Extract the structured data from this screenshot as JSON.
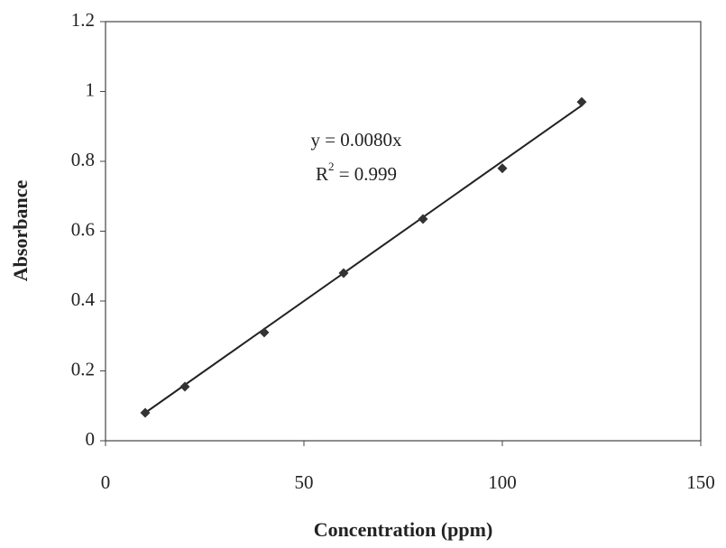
{
  "chart_data": {
    "type": "scatter",
    "x_label": "Concentration (ppm)",
    "y_label": "Absorbance",
    "x": [
      10,
      20,
      40,
      60,
      80,
      100,
      120
    ],
    "values": [
      0.08,
      0.155,
      0.31,
      0.48,
      0.635,
      0.78,
      0.97
    ],
    "color": "#333333",
    "xlim": [
      0,
      150
    ],
    "xticks": [
      0,
      50,
      100,
      150
    ],
    "ylim": [
      0,
      1.2
    ],
    "yticks": [
      0,
      0.2,
      0.4,
      0.6,
      0.8,
      1,
      1.2
    ],
    "trendline": {
      "slope": 0.008,
      "color": "#222222"
    },
    "annotation": {
      "equation": "y = 0.0080x",
      "r_squared": {
        "base": "R",
        "sup": "2",
        "rest": " = 0.999"
      }
    },
    "grid": false
  }
}
